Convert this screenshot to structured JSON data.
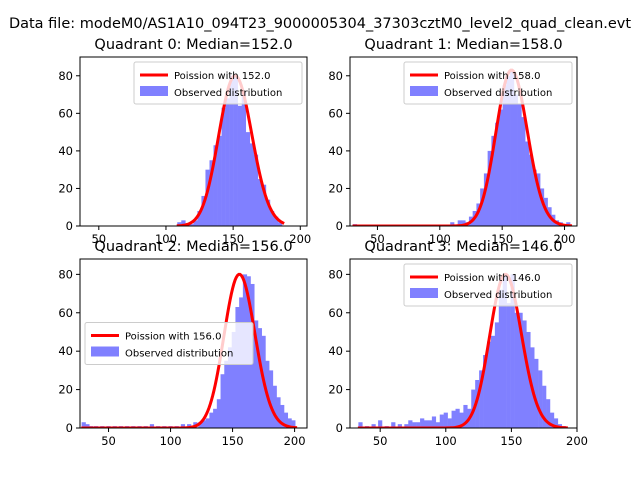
{
  "figure": {
    "suptitle": "Data file: modeM0/AS1A10_094T23_9000005304_37303cztM0_level2_quad_clean.evt"
  },
  "chart_data": [
    {
      "type": "bar",
      "title": "Quadrant 0: Median=152.0",
      "median": 152.0,
      "xlim": [
        36,
        205
      ],
      "ylim": [
        0,
        90
      ],
      "xticks": [
        50,
        100,
        150,
        200
      ],
      "yticks": [
        0,
        20,
        40,
        60,
        80
      ],
      "legend": "top-right",
      "series": [
        {
          "name": "Poission with 152.0",
          "kind": "line",
          "color": "#ff0000"
        },
        {
          "name": "Observed distribution",
          "kind": "hist",
          "color": "#8080ff",
          "bin_width": 3.2,
          "x": [
            110,
            113,
            116,
            119,
            122,
            125,
            128,
            131,
            134,
            137,
            140,
            143,
            146,
            149,
            152,
            155,
            158,
            161,
            164,
            167,
            170,
            173,
            176,
            179,
            182,
            185
          ],
          "values": [
            2,
            3,
            1,
            1,
            3,
            8,
            16,
            30,
            35,
            43,
            48,
            63,
            68,
            80,
            79,
            64,
            72,
            50,
            44,
            38,
            25,
            22,
            14,
            8,
            5,
            2
          ]
        }
      ]
    },
    {
      "type": "bar",
      "title": "Quadrant 1: Median=158.0",
      "median": 158.0,
      "xlim": [
        28,
        210
      ],
      "ylim": [
        0,
        90
      ],
      "xticks": [
        50,
        100,
        150,
        200
      ],
      "yticks": [
        0,
        20,
        40,
        60,
        80
      ],
      "legend": "top-right",
      "series": [
        {
          "name": "Poission with 158.0",
          "kind": "line",
          "color": "#ff0000"
        },
        {
          "name": "Observed distribution",
          "kind": "hist",
          "color": "#8080ff",
          "bin_width": 3.3,
          "x": [
            32,
            110,
            116,
            119,
            122,
            125,
            128,
            131,
            134,
            137,
            140,
            143,
            146,
            149,
            152,
            155,
            158,
            161,
            164,
            167,
            170,
            173,
            176,
            179,
            182,
            185,
            188,
            191,
            194,
            197,
            200,
            203
          ],
          "values": [
            1,
            2,
            3,
            3,
            2,
            5,
            8,
            12,
            20,
            28,
            40,
            48,
            55,
            62,
            75,
            80,
            83,
            70,
            65,
            58,
            45,
            38,
            30,
            28,
            20,
            15,
            10,
            6,
            3,
            2,
            1,
            2
          ]
        }
      ]
    },
    {
      "type": "bar",
      "title": "Quadrant 2: Median=156.0",
      "median": 156.0,
      "xlim": [
        27,
        210
      ],
      "ylim": [
        0,
        88
      ],
      "xticks": [
        50,
        100,
        150,
        200
      ],
      "yticks": [
        0,
        20,
        40,
        60,
        80
      ],
      "legend": "center-left",
      "series": [
        {
          "name": "Poission with 156.0",
          "kind": "line",
          "color": "#ff0000"
        },
        {
          "name": "Observed distribution",
          "kind": "hist",
          "color": "#8080ff",
          "bin_width": 3.4,
          "x": [
            30,
            33,
            36,
            40,
            45,
            50,
            55,
            60,
            65,
            70,
            75,
            80,
            85,
            90,
            95,
            100,
            105,
            110,
            115,
            120,
            124,
            127,
            130,
            133,
            136,
            139,
            142,
            145,
            148,
            151,
            154,
            157,
            160,
            163,
            166,
            169,
            172,
            175,
            178,
            181,
            184,
            187,
            190,
            193,
            196,
            199
          ],
          "values": [
            3,
            2,
            1,
            1,
            1,
            1,
            1,
            1,
            1,
            1,
            1,
            1,
            2,
            1,
            1,
            1,
            1,
            2,
            2,
            3,
            3,
            4,
            5,
            8,
            10,
            15,
            28,
            35,
            42,
            50,
            63,
            68,
            80,
            79,
            75,
            56,
            52,
            48,
            35,
            30,
            22,
            16,
            12,
            8,
            5,
            4
          ]
        }
      ]
    },
    {
      "type": "bar",
      "title": "Quadrant 3: Median=146.0",
      "median": 146.0,
      "xlim": [
        27,
        200
      ],
      "ylim": [
        0,
        88
      ],
      "xticks": [
        50,
        100,
        150,
        200
      ],
      "yticks": [
        0,
        20,
        40,
        60,
        80
      ],
      "legend": "top-right",
      "series": [
        {
          "name": "Poission with 146.0",
          "kind": "line",
          "color": "#ff0000"
        },
        {
          "name": "Observed distribution",
          "kind": "hist",
          "color": "#8080ff",
          "bin_width": 3.2,
          "x": [
            35,
            40,
            45,
            50,
            55,
            60,
            65,
            70,
            73,
            76,
            79,
            82,
            85,
            88,
            91,
            94,
            97,
            100,
            103,
            106,
            109,
            112,
            115,
            118,
            121,
            124,
            127,
            130,
            133,
            136,
            139,
            142,
            145,
            148,
            151,
            154,
            157,
            160,
            163,
            166,
            169,
            172,
            175,
            178,
            181,
            184,
            187,
            190
          ],
          "values": [
            3,
            1,
            2,
            4,
            1,
            3,
            2,
            2,
            4,
            3,
            3,
            5,
            4,
            4,
            6,
            3,
            7,
            8,
            5,
            9,
            10,
            8,
            12,
            10,
            20,
            25,
            30,
            38,
            45,
            48,
            55,
            72,
            80,
            65,
            80,
            60,
            60,
            56,
            50,
            42,
            36,
            30,
            22,
            15,
            8,
            5,
            2,
            1
          ]
        }
      ]
    }
  ]
}
